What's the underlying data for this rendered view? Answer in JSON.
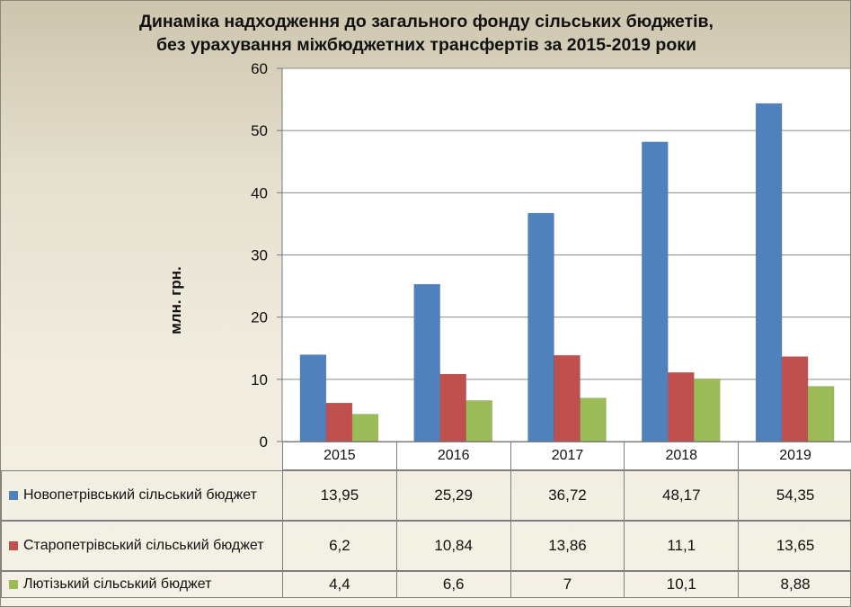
{
  "chart_data": {
    "type": "bar",
    "title_lines": [
      "Динаміка надходження до загального фонду сільських бюджетів,",
      "без урахування міжбюджетних трансфертів за 2015-2019 роки"
    ],
    "ylabel": "млн. грн.",
    "xlabel": "",
    "ylim": [
      0,
      60
    ],
    "yticks": [
      "0",
      "10",
      "20",
      "30",
      "40",
      "50",
      "60"
    ],
    "categories": [
      "2015",
      "2016",
      "2017",
      "2018",
      "2019"
    ],
    "grid": true,
    "legend": "data-table",
    "series": [
      {
        "name": "Новопетрівський сільський бюджет",
        "color": "#4f81bd",
        "values": [
          13.95,
          25.29,
          36.72,
          48.17,
          54.35
        ],
        "labels": [
          "13,95",
          "25,29",
          "36,72",
          "48,17",
          "54,35"
        ]
      },
      {
        "name": "Старопетрівський сільський бюджет",
        "color": "#c0504d",
        "values": [
          6.2,
          10.84,
          13.86,
          11.1,
          13.65
        ],
        "labels": [
          "6,2",
          "10,84",
          "13,86",
          "11,1",
          "13,65"
        ]
      },
      {
        "name": "Лютізький сільський бюджет",
        "color": "#9bbb59",
        "values": [
          4.4,
          6.6,
          7,
          10.1,
          8.88
        ],
        "labels": [
          "4,4",
          "6,6",
          "7",
          "10,1",
          "8,88"
        ]
      }
    ]
  }
}
